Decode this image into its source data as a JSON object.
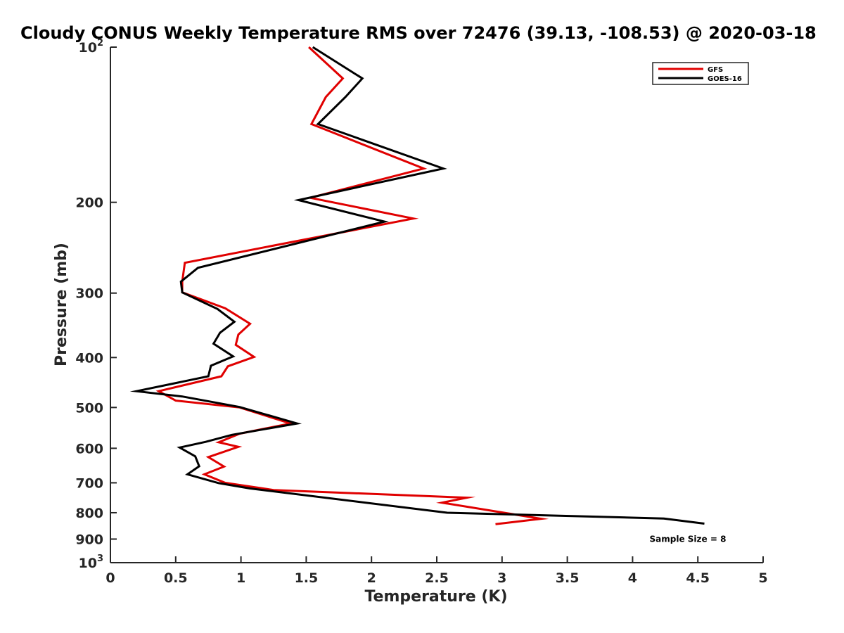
{
  "chart_data": {
    "type": "line",
    "title": "Cloudy CONUS Weekly Temperature RMS over 72476 (39.13, -108.53) @ 2020-03-18",
    "xlabel": "Temperature (K)",
    "ylabel": "Pressure (mb)",
    "xlim": [
      0,
      5
    ],
    "ylim": [
      100,
      1000
    ],
    "y_scale": "log",
    "y_reversed": true,
    "grid": false,
    "legend_position": "top-right",
    "x_ticks": [
      {
        "value": 0,
        "label": "0"
      },
      {
        "value": 0.5,
        "label": "0.5"
      },
      {
        "value": 1,
        "label": "1"
      },
      {
        "value": 1.5,
        "label": "1.5"
      },
      {
        "value": 2,
        "label": "2"
      },
      {
        "value": 2.5,
        "label": "2.5"
      },
      {
        "value": 3,
        "label": "3"
      },
      {
        "value": 3.5,
        "label": "3.5"
      },
      {
        "value": 4,
        "label": "4"
      },
      {
        "value": 4.5,
        "label": "4.5"
      },
      {
        "value": 5,
        "label": "5"
      }
    ],
    "y_ticks": [
      {
        "value": 100,
        "base": "10",
        "exp": "2"
      },
      {
        "value": 200,
        "label": "200"
      },
      {
        "value": 300,
        "label": "300"
      },
      {
        "value": 400,
        "label": "400"
      },
      {
        "value": 500,
        "label": "500"
      },
      {
        "value": 600,
        "label": "600"
      },
      {
        "value": 700,
        "label": "700"
      },
      {
        "value": 800,
        "label": "800"
      },
      {
        "value": 900,
        "label": "900"
      },
      {
        "value": 1000,
        "base": "10",
        "exp": "3"
      }
    ],
    "series": [
      {
        "name": "GFS",
        "color": "#e00000",
        "points": [
          [
            1.52,
            100
          ],
          [
            1.78,
            115
          ],
          [
            1.65,
            125
          ],
          [
            1.54,
            141
          ],
          [
            2.4,
            172
          ],
          [
            1.53,
            196
          ],
          [
            2.32,
            215
          ],
          [
            0.57,
            262
          ],
          [
            0.55,
            285
          ],
          [
            0.55,
            299
          ],
          [
            0.88,
            321
          ],
          [
            1.07,
            344
          ],
          [
            0.98,
            361
          ],
          [
            0.96,
            378
          ],
          [
            1.1,
            399
          ],
          [
            0.9,
            416
          ],
          [
            0.85,
            435
          ],
          [
            0.37,
            465
          ],
          [
            0.5,
            485
          ],
          [
            0.99,
            500
          ],
          [
            1.38,
            537
          ],
          [
            0.99,
            562
          ],
          [
            0.83,
            584
          ],
          [
            0.98,
            596
          ],
          [
            0.75,
            624
          ],
          [
            0.87,
            651
          ],
          [
            0.72,
            674
          ],
          [
            0.88,
            700
          ],
          [
            1.25,
            723
          ],
          [
            2.73,
            748
          ],
          [
            2.54,
            765
          ],
          [
            3.3,
            822
          ],
          [
            2.95,
            842
          ]
        ]
      },
      {
        "name": "GOES-16",
        "color": "#000000",
        "points": [
          [
            1.55,
            100
          ],
          [
            1.93,
            115
          ],
          [
            1.8,
            125
          ],
          [
            1.59,
            141
          ],
          [
            2.55,
            172
          ],
          [
            1.44,
            198
          ],
          [
            2.1,
            218
          ],
          [
            0.67,
            268
          ],
          [
            0.54,
            285
          ],
          [
            0.55,
            299
          ],
          [
            0.82,
            322
          ],
          [
            0.95,
            341
          ],
          [
            0.84,
            358
          ],
          [
            0.79,
            376
          ],
          [
            0.94,
            398
          ],
          [
            0.77,
            415
          ],
          [
            0.75,
            435
          ],
          [
            0.2,
            465
          ],
          [
            0.55,
            476
          ],
          [
            0.99,
            499
          ],
          [
            1.43,
            537
          ],
          [
            0.93,
            565
          ],
          [
            0.73,
            583
          ],
          [
            0.53,
            598
          ],
          [
            0.65,
            622
          ],
          [
            0.68,
            650
          ],
          [
            0.59,
            674
          ],
          [
            0.83,
            701
          ],
          [
            1.07,
            718
          ],
          [
            2.58,
            800
          ],
          [
            4.24,
            821
          ],
          [
            4.55,
            840
          ]
        ]
      }
    ],
    "annotations": [
      {
        "text": "Sample Size = 8",
        "x": 4.2,
        "p": 900
      }
    ]
  }
}
